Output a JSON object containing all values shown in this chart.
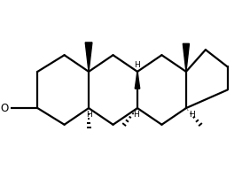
{
  "bg_color": "#ffffff",
  "line_color": "#000000",
  "line_width": 1.6,
  "figsize": [
    2.82,
    1.92
  ],
  "dpi": 100,
  "xlim": [
    -0.3,
    9.5
  ],
  "ylim": [
    0.0,
    6.5
  ]
}
